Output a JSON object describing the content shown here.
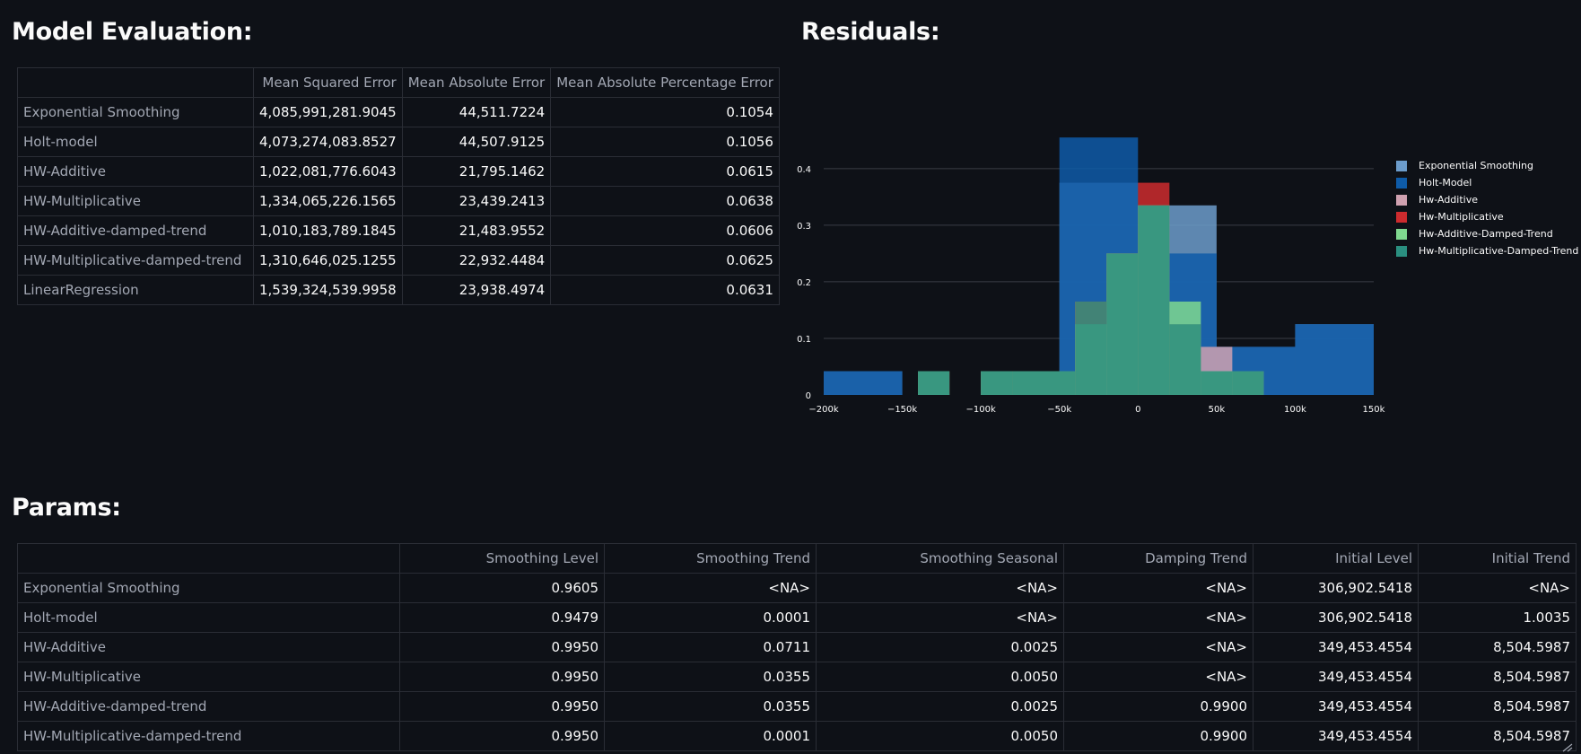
{
  "model_evaluation": {
    "title": "Model Evaluation:",
    "columns": [
      "",
      "Mean Squared Error",
      "Mean Absolute Error",
      "Mean Absolute Percentage Error"
    ],
    "rows": [
      [
        "Exponential Smoothing",
        "4,085,991,281.9045",
        "44,511.7224",
        "0.1054"
      ],
      [
        "Holt-model",
        "4,073,274,083.8527",
        "44,507.9125",
        "0.1056"
      ],
      [
        "HW-Additive",
        "1,022,081,776.6043",
        "21,795.1462",
        "0.0615"
      ],
      [
        "HW-Multiplicative",
        "1,334,065,226.1565",
        "23,439.2413",
        "0.0638"
      ],
      [
        "HW-Additive-damped-trend",
        "1,010,183,789.1845",
        "21,483.9552",
        "0.0606"
      ],
      [
        "HW-Multiplicative-damped-trend",
        "1,310,646,025.1255",
        "22,932.4484",
        "0.0625"
      ],
      [
        "LinearRegression",
        "1,539,324,539.9958",
        "23,938.4974",
        "0.0631"
      ]
    ]
  },
  "residuals": {
    "title": "Residuals:"
  },
  "chart_data": {
    "type": "bar",
    "title": "Residuals:",
    "xlabel": "",
    "ylabel": "",
    "xlim": [
      -200000,
      150000
    ],
    "ylim": [
      0,
      0.46
    ],
    "x_ticks": [
      "−200k",
      "−150k",
      "−100k",
      "−50k",
      "0",
      "50k",
      "100k",
      "150k"
    ],
    "y_ticks": [
      "0",
      "0.1",
      "0.2",
      "0.3",
      "0.4"
    ],
    "series": [
      {
        "name": "Exponential Smoothing",
        "color": "#6c9ccb",
        "bins": [
          [
            -200000,
            -150000,
            0.042
          ],
          [
            -50000,
            0,
            0.375
          ],
          [
            0,
            50000,
            0.335
          ],
          [
            50000,
            100000,
            0.085
          ],
          [
            100000,
            150000,
            0.125
          ]
        ]
      },
      {
        "name": "Holt-Model",
        "color": "#0e5ba8",
        "bins": [
          [
            -200000,
            -150000,
            0.042
          ],
          [
            -50000,
            0,
            0.455
          ],
          [
            0,
            50000,
            0.25
          ],
          [
            50000,
            100000,
            0.085
          ],
          [
            100000,
            150000,
            0.125
          ]
        ]
      },
      {
        "name": "Hw-Additive",
        "color": "#cfa1b0",
        "bins": [
          [
            -140000,
            -120000,
            0.042
          ],
          [
            -100000,
            -80000,
            0.042
          ],
          [
            -80000,
            -40000,
            0.042
          ],
          [
            -40000,
            -20000,
            0.165
          ],
          [
            -20000,
            0,
            0.25
          ],
          [
            0,
            20000,
            0.335
          ],
          [
            20000,
            40000,
            0.125
          ],
          [
            40000,
            60000,
            0.085
          ],
          [
            60000,
            80000,
            0.042
          ]
        ]
      },
      {
        "name": "Hw-Multiplicative",
        "color": "#cd2b2e",
        "bins": [
          [
            -140000,
            -120000,
            0.042
          ],
          [
            -100000,
            -80000,
            0.042
          ],
          [
            -80000,
            -40000,
            0.042
          ],
          [
            -40000,
            -20000,
            0.165
          ],
          [
            -20000,
            0,
            0.25
          ],
          [
            0,
            20000,
            0.375
          ],
          [
            20000,
            40000,
            0.125
          ],
          [
            40000,
            60000,
            0.042
          ],
          [
            60000,
            80000,
            0.042
          ]
        ]
      },
      {
        "name": "Hw-Additive-Damped-Trend",
        "color": "#7fd88f",
        "bins": [
          [
            -140000,
            -120000,
            0.042
          ],
          [
            -100000,
            -80000,
            0.042
          ],
          [
            -80000,
            -40000,
            0.042
          ],
          [
            -40000,
            -20000,
            0.125
          ],
          [
            -20000,
            0,
            0.25
          ],
          [
            0,
            20000,
            0.335
          ],
          [
            20000,
            40000,
            0.165
          ],
          [
            40000,
            60000,
            0.042
          ],
          [
            60000,
            80000,
            0.042
          ]
        ]
      },
      {
        "name": "Hw-Multiplicative-Damped-Trend",
        "color": "#2a8f80",
        "bins": [
          [
            -140000,
            -120000,
            0.042
          ],
          [
            -100000,
            -80000,
            0.042
          ],
          [
            -80000,
            -40000,
            0.042
          ],
          [
            -40000,
            -20000,
            0.165
          ],
          [
            -20000,
            0,
            0.25
          ],
          [
            0,
            20000,
            0.335
          ],
          [
            20000,
            40000,
            0.125
          ],
          [
            40000,
            60000,
            0.042
          ],
          [
            60000,
            80000,
            0.042
          ]
        ]
      }
    ]
  },
  "params": {
    "title": "Params:",
    "columns": [
      "",
      "Smoothing Level",
      "Smoothing Trend",
      "Smoothing Seasonal",
      "Damping Trend",
      "Initial Level",
      "Initial Trend"
    ],
    "rows": [
      [
        "Exponential Smoothing",
        "0.9605",
        "<NA>",
        "<NA>",
        "<NA>",
        "306,902.5418",
        "<NA>"
      ],
      [
        "Holt-model",
        "0.9479",
        "0.0001",
        "<NA>",
        "<NA>",
        "306,902.5418",
        "1.0035"
      ],
      [
        "HW-Additive",
        "0.9950",
        "0.0711",
        "0.0025",
        "<NA>",
        "349,453.4554",
        "8,504.5987"
      ],
      [
        "HW-Multiplicative",
        "0.9950",
        "0.0355",
        "0.0050",
        "<NA>",
        "349,453.4554",
        "8,504.5987"
      ],
      [
        "HW-Additive-damped-trend",
        "0.9950",
        "0.0355",
        "0.0025",
        "0.9900",
        "349,453.4554",
        "8,504.5987"
      ],
      [
        "HW-Multiplicative-damped-trend",
        "0.9950",
        "0.0001",
        "0.0050",
        "0.9900",
        "349,453.4554",
        "8,504.5987"
      ]
    ]
  },
  "icons": {
    "resize": "resize-handle-icon"
  }
}
